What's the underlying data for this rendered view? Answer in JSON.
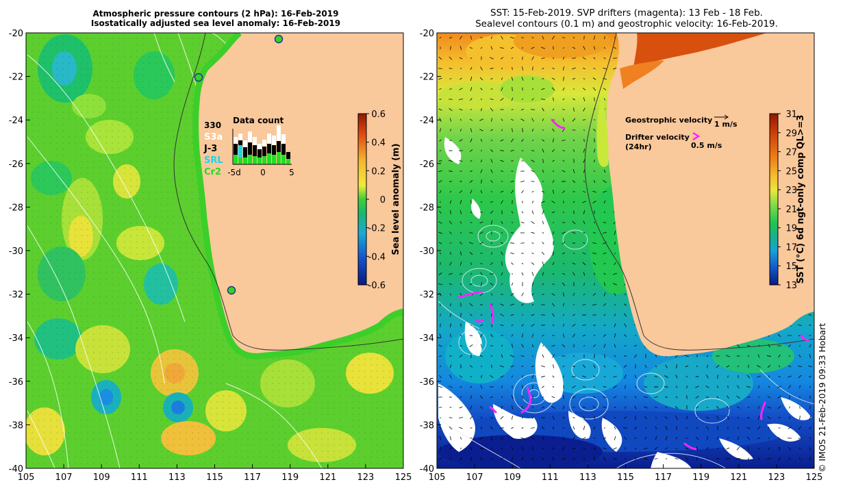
{
  "left_map": {
    "title_line1": "Atmospheric pressure contours (2 hPa): 16-Feb-2019",
    "title_line2": "Isostatically adjusted sea level anomaly: 16-Feb-2019",
    "colorbar": {
      "label": "Sea level anomaly (m)",
      "ticks": [
        "0.6",
        "0.4",
        "0.2",
        "0",
        "-0.2",
        "-0.4",
        "-0.6"
      ],
      "colors": [
        "#8b1a00",
        "#e8641a",
        "#f5b830",
        "#f2ea3a",
        "#7ed957",
        "#1fbf3a",
        "#19b59a",
        "#1aa0e0",
        "#1656c8",
        "#0a1a8a"
      ]
    },
    "data_count": {
      "title": "Data count",
      "count_number": "330",
      "sources": [
        {
          "name": "S3a",
          "color": "#ffffff"
        },
        {
          "name": "J-3",
          "color": "#000000"
        },
        {
          "name": "SRL",
          "color": "#22d4e8"
        },
        {
          "name": "Cr2",
          "color": "#22dd22"
        }
      ],
      "axis_ticks": [
        "-5d",
        "0",
        "5"
      ]
    },
    "tide_gauges": [
      {
        "lon": 114.1,
        "lat": -22.0
      },
      {
        "lon": 118.5,
        "lat": -20.3
      },
      {
        "lon": 115.95,
        "lat": -31.8
      }
    ]
  },
  "right_map": {
    "title_line1": "SST: 15-Feb-2019. SVP drifters (magenta): 13 Feb - 18 Feb.",
    "title_line2": "Sealevel contours (0.1 m) and geostrophic velocity: 16-Feb-2019.",
    "colorbar": {
      "label": "SST (°C) 6d ngt-only comp QL>=3",
      "ticks": [
        "31",
        "29",
        "27",
        "25",
        "23",
        "21",
        "19",
        "17",
        "15",
        "13"
      ],
      "colors": [
        "#8b1a00",
        "#d0400a",
        "#f07a14",
        "#f5b830",
        "#f2ea3a",
        "#a6e23a",
        "#22cc44",
        "#17b58a",
        "#18a6d8",
        "#1560d0",
        "#0a1a8a"
      ]
    },
    "legend": {
      "geostrophic_label": "Geostrophic velocity",
      "geostrophic_scale": "1 m/s",
      "drifter_label": "Drifter velocity",
      "drifter_sub": "(24hr)",
      "drifter_scale": "0.5 m/s",
      "drifter_color": "#ff22ff"
    }
  },
  "axes": {
    "x_ticks": [
      "105",
      "107",
      "109",
      "111",
      "113",
      "115",
      "117",
      "119",
      "121",
      "123",
      "125"
    ],
    "y_ticks": [
      "-20",
      "-22",
      "-24",
      "-26",
      "-28",
      "-30",
      "-32",
      "-34",
      "-36",
      "-38",
      "-40"
    ],
    "lon_range": [
      105,
      125
    ],
    "lat_range": [
      -40,
      -20
    ]
  },
  "land_color": "#f9c89b",
  "credit": "© IMOS 21-Feb-2019 09:33 Hobart"
}
